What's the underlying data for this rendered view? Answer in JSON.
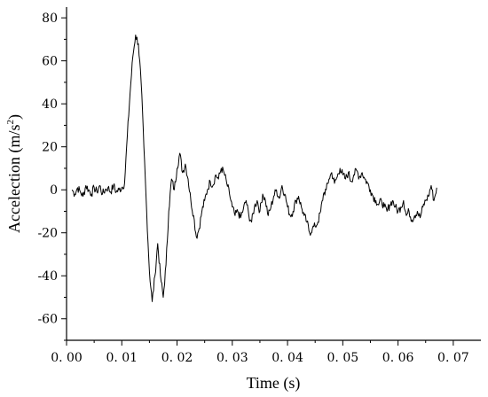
{
  "chart_data": {
    "type": "line",
    "title": "",
    "xlabel": "Time (s)",
    "ylabel": "Accelection (m/s²)",
    "ylabel_parts": {
      "main": "Accelection (m/s",
      "sup": "2",
      "close": ")"
    },
    "xlim": [
      0.0,
      0.075
    ],
    "ylim": [
      -70,
      85
    ],
    "xticks": [
      0.0,
      0.01,
      0.02,
      0.03,
      0.04,
      0.05,
      0.06,
      0.07
    ],
    "xtick_labels": [
      "0. 00",
      "0. 01",
      "0. 02",
      "0. 03",
      "0. 04",
      "0. 05",
      "0. 06",
      "0. 07"
    ],
    "yticks": [
      -60,
      -40,
      -20,
      0,
      20,
      40,
      60,
      80
    ],
    "ytick_labels": [
      "-60",
      "-40",
      "-20",
      "0",
      "20",
      "40",
      "60",
      "80"
    ],
    "grid": false,
    "legend": "none",
    "series": [
      {
        "x": [
          0.001,
          0.0015,
          0.002,
          0.0025,
          0.003,
          0.0035,
          0.004,
          0.0045,
          0.005,
          0.0055,
          0.006,
          0.0065,
          0.007,
          0.0075,
          0.008,
          0.0085,
          0.009,
          0.0095,
          0.01,
          0.0105,
          0.011,
          0.0115,
          0.012,
          0.0125,
          0.013,
          0.0135,
          0.014,
          0.0145,
          0.015,
          0.0155,
          0.016,
          0.0165,
          0.017,
          0.0175,
          0.018,
          0.0185,
          0.019,
          0.0195,
          0.02,
          0.0205,
          0.021,
          0.0215,
          0.022,
          0.0225,
          0.023,
          0.0235,
          0.024,
          0.0245,
          0.025,
          0.0255,
          0.026,
          0.0265,
          0.027,
          0.0275,
          0.028,
          0.0285,
          0.029,
          0.0295,
          0.03,
          0.0305,
          0.031,
          0.0315,
          0.032,
          0.0325,
          0.033,
          0.0335,
          0.034,
          0.0345,
          0.035,
          0.0355,
          0.036,
          0.0365,
          0.037,
          0.0375,
          0.038,
          0.0385,
          0.039,
          0.0395,
          0.04,
          0.0405,
          0.041,
          0.0415,
          0.042,
          0.0425,
          0.043,
          0.0435,
          0.044,
          0.0445,
          0.045,
          0.0455,
          0.046,
          0.0465,
          0.047,
          0.0475,
          0.048,
          0.0485,
          0.049,
          0.0495,
          0.05,
          0.0505,
          0.051,
          0.0515,
          0.052,
          0.0525,
          0.053,
          0.0535,
          0.054,
          0.0545,
          0.055,
          0.0555,
          0.056,
          0.0565,
          0.057,
          0.0575,
          0.058,
          0.0585,
          0.059,
          0.0595,
          0.06,
          0.0605,
          0.061,
          0.0615,
          0.062,
          0.0625,
          0.063,
          0.0635,
          0.064,
          0.0645,
          0.065,
          0.0655,
          0.066,
          0.0665,
          0.067
        ],
        "values": [
          0,
          -2,
          1,
          -1,
          -3,
          2,
          0,
          -2,
          1,
          -1,
          2,
          -2,
          0,
          1,
          -1,
          2,
          -1,
          0,
          1,
          3,
          25,
          45,
          62,
          72,
          68,
          50,
          20,
          -10,
          -38,
          -52,
          -40,
          -25,
          -40,
          -50,
          -35,
          -10,
          5,
          0,
          10,
          17,
          8,
          12,
          5,
          -5,
          -12,
          -22,
          -18,
          -10,
          -5,
          0,
          4,
          2,
          7,
          5,
          10,
          8,
          3,
          -2,
          -8,
          -12,
          -10,
          -13,
          -9,
          -5,
          -12,
          -15,
          -8,
          -5,
          -10,
          -2,
          -5,
          -12,
          -8,
          -3,
          0,
          -4,
          2,
          -2,
          -8,
          -12,
          -10,
          -5,
          -3,
          -8,
          -12,
          -15,
          -20,
          -18,
          -17,
          -15,
          -10,
          -2,
          0,
          5,
          8,
          3,
          6,
          10,
          7,
          5,
          8,
          4,
          7,
          9,
          6,
          8,
          5,
          3,
          0,
          -3,
          -5,
          -7,
          -5,
          -8,
          -10,
          -7,
          -5,
          -8,
          -10,
          -8,
          -5,
          -12,
          -10,
          -14,
          -12,
          -10,
          -13,
          -8,
          -5,
          -3,
          2,
          -5,
          1
        ]
      }
    ]
  }
}
